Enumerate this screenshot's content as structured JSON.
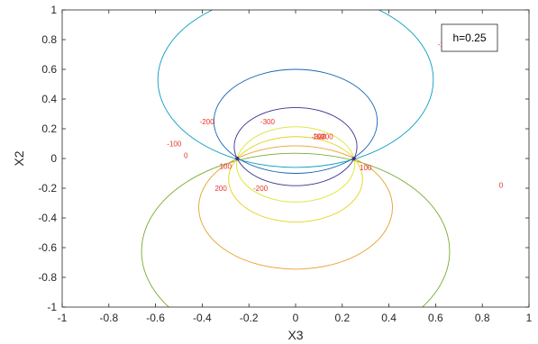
{
  "chart_data": {
    "type": "contour",
    "xlabel": "X3",
    "ylabel": "X2",
    "xlim": [
      -1,
      1
    ],
    "ylim": [
      -1,
      1
    ],
    "x_ticks": [
      "-1",
      "-0.8",
      "-0.6",
      "-0.4",
      "-0.2",
      "0",
      "0.2",
      "0.4",
      "0.6",
      "0.8",
      "1"
    ],
    "y_ticks": [
      "-1",
      "-0.8",
      "-0.6",
      "-0.4",
      "-0.2",
      "0",
      "0.2",
      "0.4",
      "0.6",
      "0.8",
      "1"
    ],
    "legend_text": "h=0.25",
    "legend_position": "top-right",
    "singular_points": [
      [
        -0.25,
        0
      ],
      [
        0.25,
        0
      ]
    ],
    "contours": [
      {
        "level": "0",
        "color": "#77ac30",
        "center": [
          0,
          -0.625
        ],
        "radius": 0.66,
        "clip": true
      },
      {
        "level": "-100",
        "color": "#0a9ec1",
        "center": [
          0,
          0.53
        ],
        "radius": 0.59,
        "clip": true
      },
      {
        "level": "-200",
        "color": "#1a66b5",
        "center": [
          0,
          0.25
        ],
        "radius": 0.35,
        "clip": false
      },
      {
        "level": "-300",
        "color": "#3b2f91",
        "center": [
          0,
          0.08
        ],
        "radius": 0.263,
        "clip": false
      },
      {
        "level": "100",
        "color": "#e8a02c",
        "center": [
          0,
          -0.33
        ],
        "radius": 0.415,
        "clip": false
      },
      {
        "level": "200",
        "color": "#e6d21e",
        "center": [
          0,
          -0.14
        ],
        "radius": 0.287,
        "clip": false
      },
      {
        "level": "300",
        "color": "#d9e62b",
        "center": [
          0,
          -0.04
        ],
        "radius": 0.253,
        "clip": false
      }
    ],
    "contour_labels": [
      {
        "text": "-100",
        "x": 0.64,
        "y": 0.77,
        "color": "#e8312a"
      },
      {
        "text": "-100",
        "x": -0.52,
        "y": 0.1,
        "color": "#e8312a"
      },
      {
        "text": "-200",
        "x": -0.38,
        "y": 0.25,
        "color": "#e8312a"
      },
      {
        "text": "-300",
        "x": -0.12,
        "y": 0.25,
        "color": "#e8312a"
      },
      {
        "text": "-300",
        "x": 0.1,
        "y": 0.15,
        "color": "#e8312a"
      },
      {
        "text": "0",
        "x": -0.47,
        "y": 0.02,
        "color": "#e8312a"
      },
      {
        "text": "0",
        "x": 0.88,
        "y": -0.18,
        "color": "#e8312a"
      },
      {
        "text": "100",
        "x": -0.3,
        "y": -0.05,
        "color": "#e8312a"
      },
      {
        "text": "100",
        "x": 0.3,
        "y": -0.06,
        "color": "#e8312a"
      },
      {
        "text": "100",
        "x": 0.1,
        "y": 0.15,
        "color": "#e8312a"
      },
      {
        "text": "200",
        "x": -0.32,
        "y": -0.2,
        "color": "#e8312a"
      },
      {
        "text": "-200",
        "x": 0.13,
        "y": 0.15,
        "color": "#e8312a"
      },
      {
        "text": "-200",
        "x": -0.15,
        "y": -0.2,
        "color": "#e8312a"
      }
    ]
  }
}
